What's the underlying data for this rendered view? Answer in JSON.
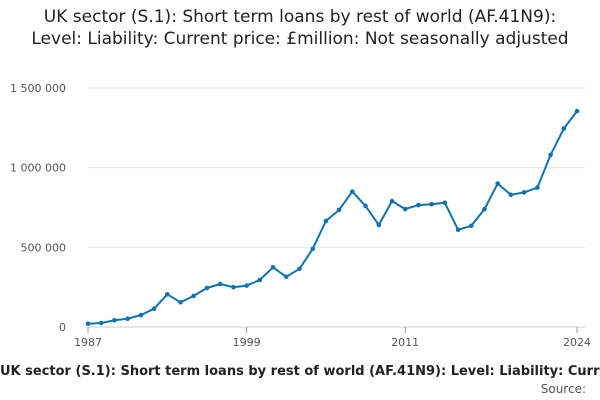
{
  "chart_data": {
    "type": "line",
    "title": "UK sector (S.1): Short term loans by rest of world (AF.41N9): Level: Liability: Current price: £million: Not seasonally adjusted",
    "xlabel": "",
    "ylabel": "",
    "x_ticks": [
      "1987",
      "1999",
      "2011",
      "2024"
    ],
    "y_ticks": [
      {
        "value": 0,
        "label": "0"
      },
      {
        "value": 500000,
        "label": "500 000"
      },
      {
        "value": 1000000,
        "label": "1 000 000"
      },
      {
        "value": 1500000,
        "label": "1 500 000"
      }
    ],
    "xlim": [
      1987,
      2024
    ],
    "ylim": [
      0,
      1500000
    ],
    "grid": true,
    "legend_position": "bottom",
    "series": [
      {
        "name": "UK sector (S.1): Short term loans by rest of world (AF.41N9): Level: Liability: Current price: £million: Not seasonally adjusted",
        "color": "#0f73b0",
        "x": [
          1987,
          1988,
          1989,
          1990,
          1991,
          1992,
          1993,
          1994,
          1995,
          1996,
          1997,
          1998,
          1999,
          2000,
          2001,
          2002,
          2003,
          2004,
          2005,
          2006,
          2007,
          2008,
          2009,
          2010,
          2011,
          2012,
          2013,
          2014,
          2015,
          2016,
          2017,
          2018,
          2019,
          2020,
          2021,
          2022,
          2023,
          2024
        ],
        "values": [
          20000,
          25000,
          42000,
          52000,
          75000,
          115000,
          205000,
          155000,
          195000,
          245000,
          270000,
          250000,
          260000,
          295000,
          375000,
          315000,
          365000,
          490000,
          665000,
          735000,
          850000,
          760000,
          640000,
          790000,
          740000,
          765000,
          770000,
          780000,
          610000,
          635000,
          740000,
          900000,
          830000,
          845000,
          875000,
          1080000,
          1245000,
          1355000
        ]
      }
    ]
  },
  "source_label": "Source:"
}
